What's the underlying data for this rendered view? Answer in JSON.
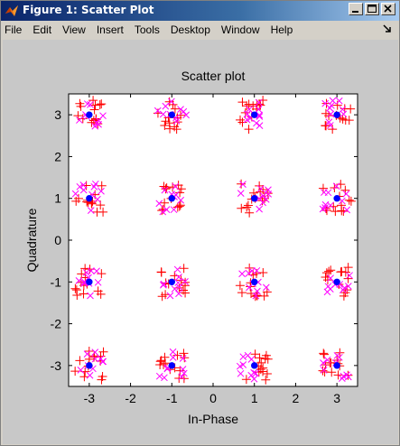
{
  "window": {
    "title": "Figure 1: Scatter Plot",
    "icon": "matlab-logo-icon",
    "controls": [
      "minimize",
      "maximize",
      "close"
    ]
  },
  "menubar": {
    "items": [
      "File",
      "Edit",
      "View",
      "Insert",
      "Tools",
      "Desktop",
      "Window",
      "Help"
    ]
  },
  "colors": {
    "received": "#ff0000",
    "received_alt": "#ff00ff",
    "reference": "#0000ff",
    "figure_bg": "#c8c8c8",
    "axes_bg": "#ffffff"
  },
  "chart_data": {
    "type": "scatter",
    "title": "Scatter plot",
    "xlabel": "In-Phase",
    "ylabel": "Quadrature",
    "xlim": [
      -3.5,
      3.5
    ],
    "ylim": [
      -3.5,
      3.5
    ],
    "xticks": [
      -3,
      -2,
      -1,
      0,
      1,
      2,
      3
    ],
    "yticks": [
      -3,
      -2,
      -1,
      0,
      1,
      2,
      3
    ],
    "grid": false,
    "constellation": "16-QAM",
    "reference_points": [
      [
        -3,
        3
      ],
      [
        -1,
        3
      ],
      [
        1,
        3
      ],
      [
        3,
        3
      ],
      [
        -3,
        1
      ],
      [
        -1,
        1
      ],
      [
        1,
        1
      ],
      [
        3,
        1
      ],
      [
        -3,
        -1
      ],
      [
        -1,
        -1
      ],
      [
        1,
        -1
      ],
      [
        3,
        -1
      ],
      [
        -3,
        -3
      ],
      [
        -1,
        -3
      ],
      [
        1,
        -3
      ],
      [
        3,
        -3
      ]
    ],
    "noise_spread": 0.35,
    "samples_per_point": 14,
    "series": [
      {
        "marker": "+",
        "color": "#ff0000"
      },
      {
        "marker": "x",
        "color": "#ff00ff"
      },
      {
        "marker": "*",
        "color": "#0000ff"
      }
    ]
  }
}
